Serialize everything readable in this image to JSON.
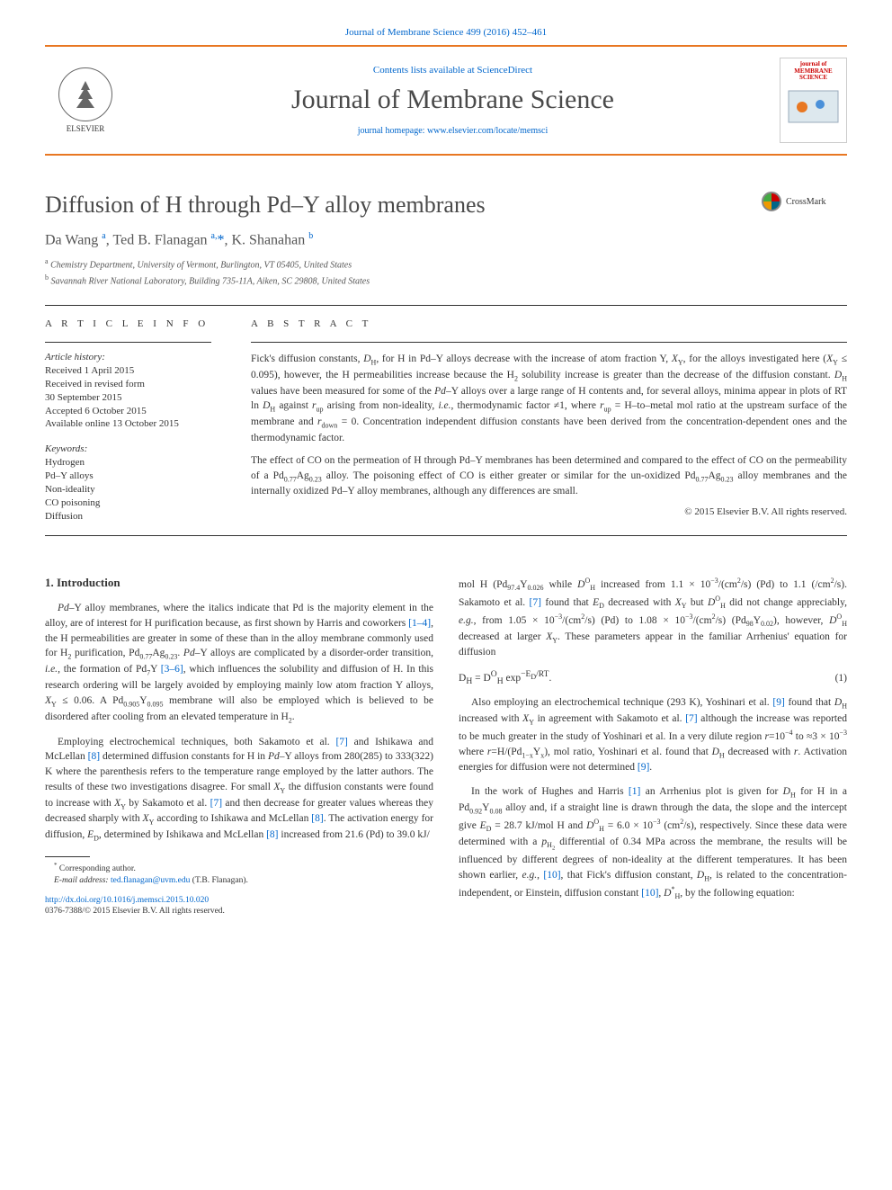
{
  "top_link": {
    "prefix": "",
    "journal": "Journal of Membrane Science 499 (2016) 452–461"
  },
  "header": {
    "contents_prefix": "Contents lists available at ",
    "contents_link": "ScienceDirect",
    "journal_title": "Journal of Membrane Science",
    "homepage_prefix": "journal homepage: ",
    "homepage_url": "www.elsevier.com/locate/memsci",
    "elsevier_label": "ELSEVIER",
    "cover_title": "journal of MEMBRANE SCIENCE"
  },
  "article": {
    "title": "Diffusion of H through Pd–Y alloy membranes",
    "crossmark": "CrossMark",
    "authors_html": "Da Wang <span class='sup'>a</span>, Ted B. Flanagan <span class='sup'>a,</span><span class='star'>*</span>, K. Shanahan <span class='sup'>b</span>",
    "affil_a": "Chemistry Department, University of Vermont, Burlington, VT 05405, United States",
    "affil_b": "Savannah River National Laboratory, Building 735-11A, Aiken, SC 29808, United States"
  },
  "info": {
    "header": "A R T I C L E   I N F O",
    "history_label": "Article history:",
    "history": [
      "Received 1 April 2015",
      "Received in revised form",
      "30 September 2015",
      "Accepted 6 October 2015",
      "Available online 13 October 2015"
    ],
    "keywords_label": "Keywords:",
    "keywords": [
      "Hydrogen",
      "Pd–Y alloys",
      "Non-ideality",
      "CO poisoning",
      "Diffusion"
    ]
  },
  "abstract": {
    "header": "A B S T R A C T",
    "p1": "Fick's diffusion constants, <span class='ital'>D</span><span class='sub'>H</span>, for H in Pd–Y alloys decrease with the increase of atom fraction Y, <span class='ital'>X</span><span class='sub'>Y</span>, for the alloys investigated here (<span class='ital'>X</span><span class='sub'>Y</span> ≤ 0.095), however, the H permeabilities increase because the H<span class='sub'>2</span> solubility increase is greater than the decrease of the diffusion constant. <span class='ital'>D</span><span class='sub'>H</span> values have been measured for some of the <span class='ital'>Pd</span>–Y alloys over a large range of H contents and, for several alloys, minima appear in plots of RT ln <span class='ital'>D</span><span class='sub'>H</span> against <span class='ital'>r</span><span class='sub'>up</span> arising from non-ideality, <span class='ital'>i.e.</span>, thermodynamic factor ≠1, where <span class='ital'>r</span><span class='sub'>up</span> = H–to–metal mol ratio at the upstream surface of the membrane and <span class='ital'>r</span><span class='sub'>down</span> = 0. Concentration independent diffusion constants have been derived from the concentration-dependent ones and the thermodynamic factor.",
    "p2": "The effect of CO on the permeation of H through Pd–Y membranes has been determined and compared to the effect of CO on the permeability of a Pd<span class='sub'>0.77</span>Ag<span class='sub'>0.23</span> alloy. The poisoning effect of CO is either greater or similar for the un-oxidized Pd<span class='sub'>0.77</span>Ag<span class='sub'>0.23</span> alloy membranes and the internally oxidized Pd–Y alloy membranes, although any differences are small.",
    "copyright": "© 2015 Elsevier B.V. All rights reserved."
  },
  "body": {
    "heading": "1.  Introduction",
    "left": [
      "<span class='ital'>Pd</span>–Y alloy membranes, where the italics indicate that Pd is the majority element in the alloy, are of interest for H purification because, as first shown by Harris and coworkers <span class='ref'>[1–4]</span>, the H permeabilities are greater in some of these than in the alloy membrane commonly used for H<span class='sub'>2</span> purification, Pd<span class='sub'>0.77</span>Ag<span class='sub'>0.23</span>. <span class='ital'>Pd</span>–Y alloys are complicated by a disorder-order transition, <span class='ital'>i.e.</span>, the formation of Pd<span class='sub'>7</span>Y <span class='ref'>[3–6]</span>, which influences the solubility and diffusion of H. In this research ordering will be largely avoided by employing mainly low atom fraction Y alloys, <span class='ital'>X</span><span class='sub'>Y</span> ≤ 0.06. A Pd<span class='sub'>0.905</span>Y<span class='sub'>0.095</span> membrane will also be employed which is believed to be disordered after cooling from an elevated temperature in H<span class='sub'>2</span>.",
      "Employing electrochemical techniques, both Sakamoto et al. <span class='ref'>[7]</span> and Ishikawa and McLellan <span class='ref'>[8]</span> determined diffusion constants for H in <span class='ital'>Pd</span>–Y alloys from 280(285) to 333(322) K where the parenthesis refers to the temperature range employed by the latter authors. The results of these two investigations disagree. For small <span class='ital'>X</span><span class='sub'>Y</span> the diffusion constants were found to increase with <span class='ital'>X</span><span class='sub'>Y</span> by Sakamoto et al. <span class='ref'>[7]</span> and then decrease for greater values whereas they decreased sharply with <span class='ital'>X</span><span class='sub'>Y</span> according to Ishikawa and McLellan <span class='ref'>[8]</span>. The activation energy for diffusion, <span class='ital'>E</span><span class='sub'>D</span>, determined by Ishikawa and McLellan <span class='ref'>[8]</span> increased from 21.6 (Pd) to 39.0 kJ/"
    ],
    "right_pre": "mol H (Pd<span class='sub'>97.4</span>Y<span class='sub'>0.026</span> while <span class='ital'>D</span><span class='sup'>O</span><span class='sub'>H</span> increased from 1.1 × 10<span class='sup'>−3</span>/(cm<span class='sup'>2</span>/s) (Pd) to 1.1 (/cm<span class='sup'>2</span>/s). Sakamoto et al. <span class='ref'>[7]</span> found that <span class='ital'>E</span><span class='sub'>D</span> decreased with <span class='ital'>X</span><span class='sub'>Y</span> but <span class='ital'>D</span><span class='sup'>O</span><span class='sub'>H</span> did not change appreciably, <span class='ital'>e.g.</span>, from 1.05 × 10<span class='sup'>−3</span>/(cm<span class='sup'>2</span>/s) (Pd) to 1.08 × 10<span class='sup'>−3</span>/(cm<span class='sup'>2</span>/s) (Pd<span class='sub'>98</span>Y<span class='sub'>0.02</span>), however, <span class='ital'>D</span><span class='sup'>O</span><span class='sub'>H</span> decreased at larger <span class='ital'>X</span><span class='sub'>Y</span>. These parameters appear in the familiar Arrhenius' equation for diffusion",
    "eq1": "D<sub>H</sub> = D<sup>O</sup><sub>H</sub> exp<sup>−E<sub>D</sub>/RT</sup>.",
    "eq1_num": "(1)",
    "right_post": [
      "Also employing an electrochemical technique (293 K), Yoshinari et al. <span class='ref'>[9]</span> found that <span class='ital'>D</span><span class='sub'>H</span> increased with <span class='ital'>X</span><span class='sub'>Y</span> in agreement with Sakamoto et al. <span class='ref'>[7]</span> although the increase was reported to be much greater in the study of Yoshinari et al. In a very dilute region <span class='ital'>r</span>=10<span class='sup'>−4</span> to ≈3 × 10<span class='sup'>−3</span> where <span class='ital'>r</span>=H/(Pd<span class='sub'>1−x</span>Y<span class='sub'>x</span>), mol ratio, Yoshinari et al. found that <span class='ital'>D</span><span class='sub'>H</span> decreased with <span class='ital'>r</span>. Activation energies for diffusion were not determined <span class='ref'>[9]</span>.",
      "In the work of Hughes and Harris <span class='ref'>[1]</span> an Arrhenius plot is given for <span class='ital'>D</span><span class='sub'>H</span> for H in a Pd<span class='sub'>0.92</span>Y<span class='sub'>0.08</span> alloy and, if a straight line is drawn through the data, the slope and the intercept give <span class='ital'>E</span><span class='sub'>D</span> = 28.7 kJ/mol H and <span class='ital'>D</span><span class='sup'>O</span><span class='sub'>H</span> = 6.0 × 10<span class='sup'>−3</span> (cm<span class='sup'>2</span>/s), respectively. Since these data were determined with a <span class='ital'>p</span><span class='sub'>H<sub>2</sub></span> differential of 0.34 MPa across the membrane, the results will be influenced by different degrees of non-ideality at the different temperatures. It has been shown earlier, <span class='ital'>e.g.</span>, <span class='ref'>[10]</span>, that Fick's diffusion constant, <span class='ital'>D</span><span class='sub'>H</span>, is related to the concentration-independent, or Einstein, diffusion constant <span class='ref'>[10]</span>, <span class='ital'>D</span><span class='sup'>*</span><span class='sub'>H</span>, by the following equation:"
    ]
  },
  "footnotes": {
    "corr": "Corresponding author.",
    "email_label": "E-mail address:",
    "email": "ted.flanagan@uvm.edu",
    "email_name": "(T.B. Flanagan).",
    "doi": "http://dx.doi.org/10.1016/j.memsci.2015.10.020",
    "issn": "0376-7388/© 2015 Elsevier B.V. All rights reserved."
  },
  "colors": {
    "accent": "#e87722",
    "link": "#0066cc",
    "text": "#333333",
    "muted": "#555555",
    "background": "#ffffff"
  }
}
